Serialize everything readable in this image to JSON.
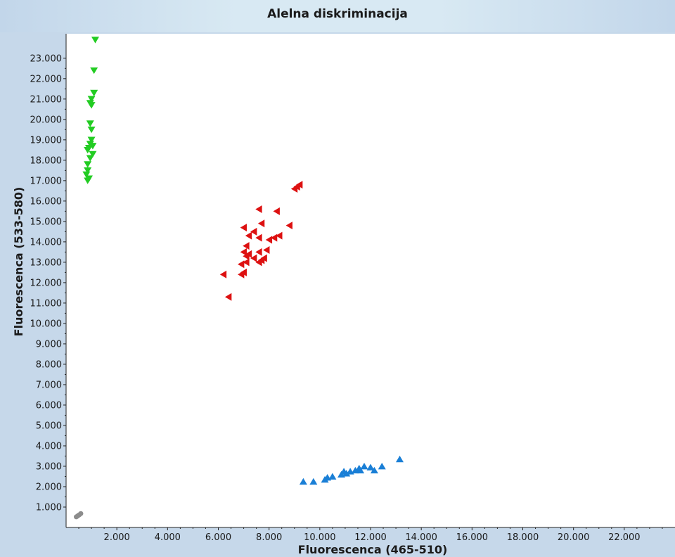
{
  "chart_data": {
    "type": "scatter",
    "title": "Alelna diskriminacija",
    "xlabel": "Fluorescenca (465-510)",
    "ylabel": "Fluorescenca (533-580)",
    "xlim": [
      0,
      24000
    ],
    "ylim": [
      0,
      24200
    ],
    "x_ticks": [
      2000,
      4000,
      6000,
      8000,
      10000,
      12000,
      14000,
      16000,
      18000,
      20000,
      22000
    ],
    "x_tick_labels": [
      "2.000",
      "4.000",
      "6.000",
      "8.000",
      "10.000",
      "12.000",
      "14.000",
      "16.000",
      "18.000",
      "20.000",
      "22.000"
    ],
    "y_ticks": [
      1000,
      2000,
      3000,
      4000,
      5000,
      6000,
      7000,
      8000,
      9000,
      10000,
      11000,
      12000,
      13000,
      14000,
      15000,
      16000,
      17000,
      18000,
      19000,
      20000,
      21000,
      22000,
      23000
    ],
    "y_tick_labels": [
      "1.000",
      "2.000",
      "3.000",
      "4.000",
      "5.000",
      "6.000",
      "7.000",
      "8.000",
      "9.000",
      "10.000",
      "11.000",
      "12.000",
      "13.000",
      "14.000",
      "15.000",
      "16.000",
      "17.000",
      "18.000",
      "19.000",
      "20.000",
      "21.000",
      "22.000",
      "23.000"
    ],
    "grid": false,
    "series": [
      {
        "color": "#22cc22",
        "marker": "triangle-down",
        "points": [
          [
            1150,
            23900
          ],
          [
            1100,
            22400
          ],
          [
            1100,
            21300
          ],
          [
            1000,
            21000
          ],
          [
            950,
            20800
          ],
          [
            1000,
            20700
          ],
          [
            950,
            19800
          ],
          [
            1000,
            19500
          ],
          [
            1000,
            19000
          ],
          [
            950,
            18800
          ],
          [
            1050,
            18700
          ],
          [
            900,
            18600
          ],
          [
            850,
            18500
          ],
          [
            1050,
            18300
          ],
          [
            950,
            18100
          ],
          [
            850,
            17800
          ],
          [
            850,
            17500
          ],
          [
            800,
            17300
          ],
          [
            900,
            17100
          ],
          [
            850,
            17000
          ]
        ]
      },
      {
        "color": "#dd1111",
        "marker": "triangle-left",
        "points": [
          [
            9200,
            16800
          ],
          [
            9000,
            16600
          ],
          [
            9100,
            16700
          ],
          [
            7600,
            15600
          ],
          [
            8300,
            15500
          ],
          [
            7700,
            14900
          ],
          [
            8800,
            14800
          ],
          [
            7000,
            14700
          ],
          [
            7400,
            14500
          ],
          [
            7200,
            14300
          ],
          [
            7600,
            14200
          ],
          [
            8400,
            14300
          ],
          [
            8200,
            14200
          ],
          [
            8000,
            14100
          ],
          [
            7100,
            13800
          ],
          [
            7900,
            13600
          ],
          [
            7600,
            13500
          ],
          [
            7000,
            13500
          ],
          [
            7200,
            13400
          ],
          [
            7100,
            13300
          ],
          [
            7400,
            13200
          ],
          [
            7800,
            13200
          ],
          [
            7700,
            13100
          ],
          [
            7600,
            13000
          ],
          [
            7100,
            13000
          ],
          [
            6900,
            12900
          ],
          [
            7000,
            12500
          ],
          [
            6900,
            12400
          ],
          [
            6200,
            12400
          ],
          [
            6400,
            11300
          ]
        ]
      },
      {
        "color": "#1a7fd6",
        "marker": "triangle-up",
        "points": [
          [
            13150,
            3350
          ],
          [
            12450,
            3000
          ],
          [
            12000,
            2950
          ],
          [
            11750,
            3000
          ],
          [
            11550,
            2900
          ],
          [
            11400,
            2800
          ],
          [
            11600,
            2800
          ],
          [
            11200,
            2750
          ],
          [
            10950,
            2750
          ],
          [
            11050,
            2650
          ],
          [
            10850,
            2600
          ],
          [
            10500,
            2500
          ],
          [
            10300,
            2450
          ],
          [
            10200,
            2350
          ],
          [
            9750,
            2250
          ],
          [
            9350,
            2250
          ],
          [
            12150,
            2800
          ]
        ]
      },
      {
        "color": "#8c8c8c",
        "marker": "circle",
        "points": [
          [
            580,
            680
          ],
          [
            520,
            620
          ],
          [
            470,
            580
          ],
          [
            430,
            540
          ],
          [
            400,
            520
          ]
        ]
      }
    ]
  }
}
